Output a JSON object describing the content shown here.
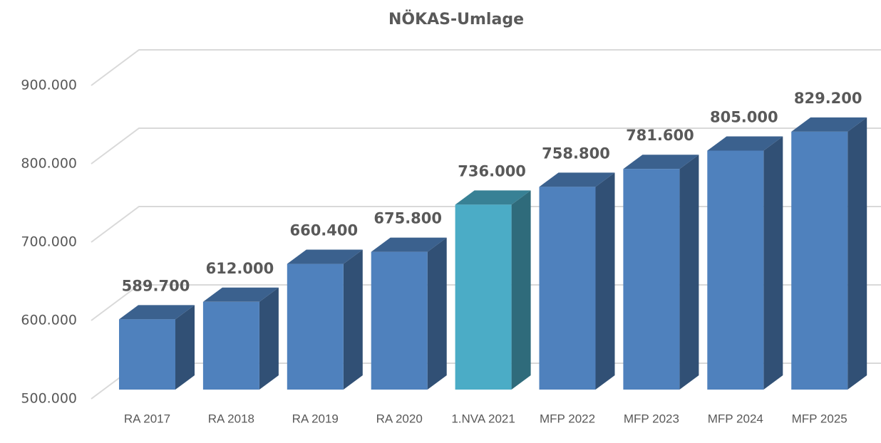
{
  "chart_data": {
    "type": "bar3d",
    "title": "NÖKAS-Umlage",
    "categories": [
      "RA 2017",
      "RA 2018",
      "RA 2019",
      "RA 2020",
      "1.NVA 2021",
      "MFP 2022",
      "MFP 2023",
      "MFP 2024",
      "MFP 2025"
    ],
    "values": [
      589700,
      612000,
      660400,
      675800,
      736000,
      758800,
      781600,
      805000,
      829200
    ],
    "value_labels": [
      "589.700",
      "612.000",
      "660.400",
      "675.800",
      "736.000",
      "758.800",
      "781.600",
      "805.000",
      "829.200"
    ],
    "colors": [
      "#4f81bd",
      "#4f81bd",
      "#4f81bd",
      "#4f81bd",
      "#4bacc6",
      "#4f81bd",
      "#4f81bd",
      "#4f81bd",
      "#4f81bd"
    ],
    "ylim": [
      500000,
      900000
    ],
    "yticks": [
      {
        "value": 500000,
        "label": "500.000"
      },
      {
        "value": 600000,
        "label": "600.000"
      },
      {
        "value": 700000,
        "label": "700.000"
      },
      {
        "value": 800000,
        "label": "800.000"
      },
      {
        "value": 900000,
        "label": "900.000"
      }
    ],
    "grid": true
  }
}
